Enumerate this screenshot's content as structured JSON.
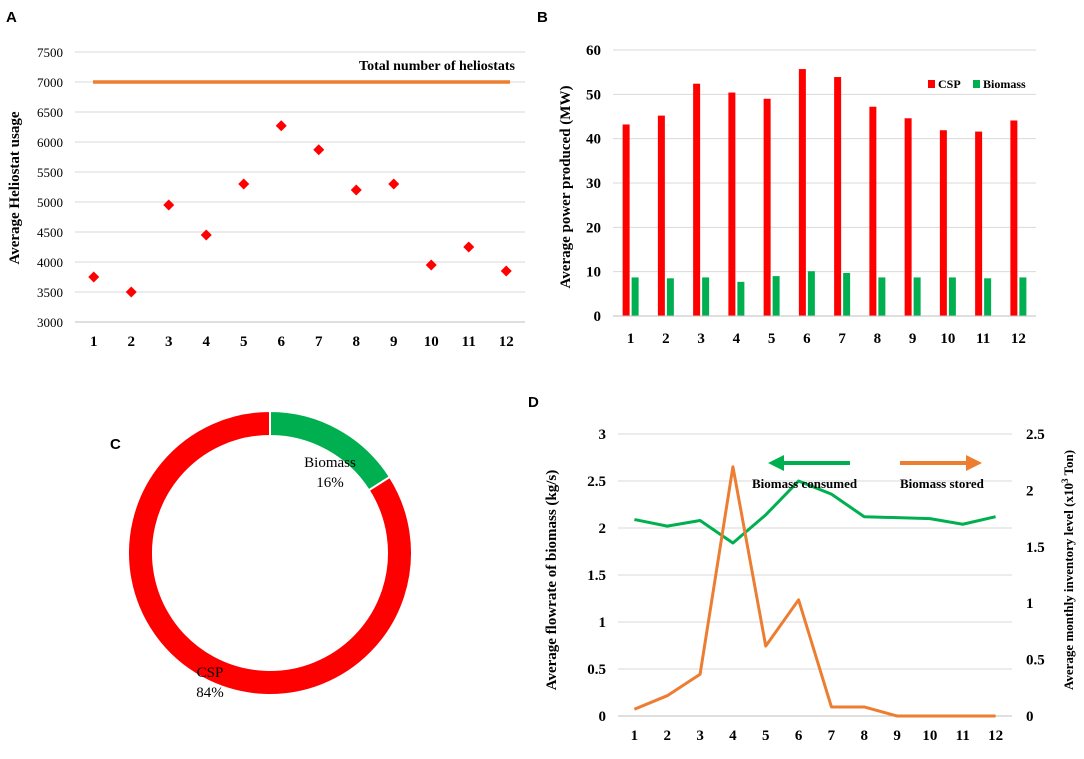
{
  "colors": {
    "red": "#ff0000",
    "green": "#00b050",
    "orange": "#ed7d31",
    "axis": "#bfbfbf",
    "grid": "#d9d9d9"
  },
  "chart_data": [
    {
      "panel": "A",
      "type": "scatter",
      "title": "",
      "xlabel": "",
      "ylabel": "Average Heliostat usage",
      "x": [
        1,
        2,
        3,
        4,
        5,
        6,
        7,
        8,
        9,
        10,
        11,
        12
      ],
      "values": [
        3750,
        3500,
        4950,
        4450,
        5300,
        6270,
        5870,
        5200,
        5300,
        3950,
        4250,
        3850
      ],
      "ylim": [
        3000,
        7500
      ],
      "yticks": [
        3000,
        3500,
        4000,
        4500,
        5000,
        5500,
        6000,
        6500,
        7000,
        7500
      ],
      "reference_line": {
        "value": 7000,
        "label": "Total number of heliostats"
      },
      "grid": true
    },
    {
      "panel": "B",
      "type": "bar",
      "title": "",
      "xlabel": "",
      "ylabel": "Average power produced  (MW)",
      "categories": [
        "1",
        "2",
        "3",
        "4",
        "5",
        "6",
        "7",
        "8",
        "9",
        "10",
        "11",
        "12"
      ],
      "series": [
        {
          "name": "CSP",
          "color": "#ff0000",
          "values": [
            43.2,
            45.2,
            52.4,
            50.4,
            49.0,
            55.7,
            53.9,
            47.2,
            44.6,
            41.9,
            41.6,
            44.1
          ]
        },
        {
          "name": "Biomass",
          "color": "#00b050",
          "values": [
            8.7,
            8.5,
            8.7,
            7.7,
            9.0,
            10.1,
            9.7,
            8.7,
            8.7,
            8.7,
            8.5,
            8.7
          ]
        }
      ],
      "ylim": [
        0,
        60
      ],
      "yticks": [
        0,
        10,
        20,
        30,
        40,
        50,
        60
      ],
      "legend": "top-right",
      "grid": true
    },
    {
      "panel": "C",
      "type": "pie",
      "title": "",
      "slices": [
        {
          "name": "Biomass",
          "value": 16,
          "label": "16%",
          "color": "#00b050"
        },
        {
          "name": "CSP",
          "value": 84,
          "label": "84%",
          "color": "#ff0000"
        }
      ]
    },
    {
      "panel": "D",
      "type": "line",
      "title": "",
      "xlabel": "",
      "ylabel": "Average  flowrate of biomass (kg/s)",
      "ylabel_right_main": "Average  monthly inventory  level  (x10",
      "ylabel_right_sup": "3",
      "ylabel_right_tail": " Ton)",
      "x": [
        1,
        2,
        3,
        4,
        5,
        6,
        7,
        8,
        9,
        10,
        11,
        12
      ],
      "series": [
        {
          "name": "Biomass consumed",
          "axis": "left",
          "color": "#00b050",
          "values": [
            2.09,
            2.02,
            2.08,
            1.84,
            2.14,
            2.5,
            2.36,
            2.12,
            2.11,
            2.1,
            2.04,
            2.12
          ]
        },
        {
          "name": "Biomass stored",
          "axis": "right",
          "color": "#ed7d31",
          "values": [
            0.06,
            0.18,
            0.37,
            2.21,
            0.62,
            1.03,
            0.08,
            0.08,
            0.0,
            0.0,
            0.0,
            0.0
          ]
        }
      ],
      "ylim": [
        0,
        3
      ],
      "ylim_right": [
        0,
        2.5
      ],
      "yticks": [
        "0",
        "0.5",
        "1",
        "1.5",
        "2",
        "2.5",
        "3"
      ],
      "yticks_right": [
        "0",
        "0.5",
        "1",
        "1.5",
        "2",
        "2.5"
      ],
      "legend": "top-right",
      "grid": true
    }
  ]
}
